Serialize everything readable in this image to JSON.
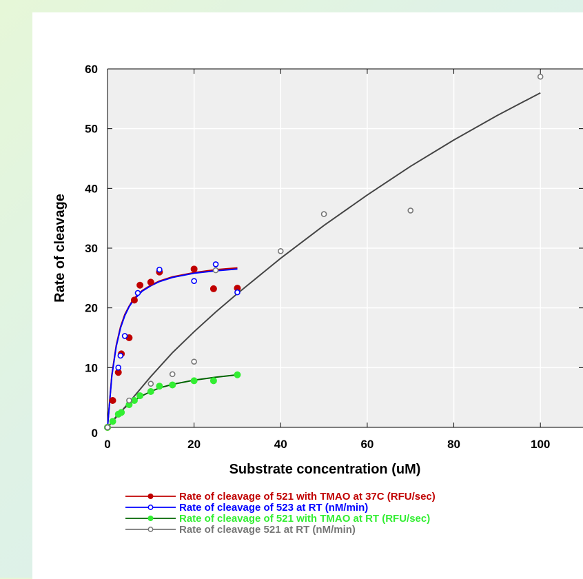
{
  "chart_data": {
    "type": "scatter",
    "xlabel": "Substrate concentration (uM)",
    "ylabel": "Rate of cleavage",
    "xlim": [
      0,
      110
    ],
    "ylim": [
      0,
      60
    ],
    "xticks": [
      0,
      20,
      40,
      60,
      80,
      100
    ],
    "yticks": [
      0,
      10,
      20,
      30,
      40,
      50,
      60
    ],
    "grid": true,
    "legend_position": "bottom",
    "series": [
      {
        "name": "Rate of cleavage of 521 with TMAO at 37C (RFU/sec)",
        "color": "#c00000",
        "marker": "filled-circle",
        "points": [
          [
            0,
            0
          ],
          [
            1.2,
            4.5
          ],
          [
            2.5,
            9.2
          ],
          [
            3.2,
            12.3
          ],
          [
            5,
            15
          ],
          [
            6.2,
            21.3
          ],
          [
            7.5,
            23.8
          ],
          [
            10,
            24.3
          ],
          [
            12,
            26
          ],
          [
            20,
            26.5
          ],
          [
            24.5,
            23.2
          ],
          [
            30,
            23.3
          ]
        ],
        "fit": [
          [
            0,
            0
          ],
          [
            1,
            8.8
          ],
          [
            2,
            13.7
          ],
          [
            3,
            16.8
          ],
          [
            4,
            18.9
          ],
          [
            5,
            20.3
          ],
          [
            6,
            21.5
          ],
          [
            8,
            22.9
          ],
          [
            10,
            23.8
          ],
          [
            12,
            24.5
          ],
          [
            15,
            25.2
          ],
          [
            20,
            25.9
          ],
          [
            25,
            26.4
          ],
          [
            30,
            26.7
          ]
        ]
      },
      {
        "name": "Rate of cleavage of 523 at RT (nM/min)",
        "color": "#0000ff",
        "marker": "open-circle",
        "points": [
          [
            0,
            0
          ],
          [
            2.5,
            10
          ],
          [
            3,
            12
          ],
          [
            4,
            15.3
          ],
          [
            7,
            22.5
          ],
          [
            12,
            26.4
          ],
          [
            20,
            24.5
          ],
          [
            25,
            27.3
          ],
          [
            30,
            22.6
          ]
        ],
        "fit": [
          [
            0,
            0
          ],
          [
            1,
            8.6
          ],
          [
            2,
            13.5
          ],
          [
            3,
            16.6
          ],
          [
            4,
            18.7
          ],
          [
            5,
            20.2
          ],
          [
            6,
            21.3
          ],
          [
            8,
            22.8
          ],
          [
            10,
            23.7
          ],
          [
            12,
            24.4
          ],
          [
            15,
            25.1
          ],
          [
            20,
            25.8
          ],
          [
            25,
            26.2
          ],
          [
            30,
            26.5
          ]
        ]
      },
      {
        "name": "Rate of cleavage of 521 with TMAO at RT (RFU/sec)",
        "color": "#33ee33",
        "line_color": "#006400",
        "marker": "filled-circle",
        "points": [
          [
            0,
            0
          ],
          [
            1.2,
            1
          ],
          [
            2.5,
            2.2
          ],
          [
            3.2,
            2.5
          ],
          [
            5,
            3.8
          ],
          [
            6.2,
            4.5
          ],
          [
            7.5,
            5.3
          ],
          [
            10,
            6
          ],
          [
            12,
            6.9
          ],
          [
            15,
            7.1
          ],
          [
            20,
            7.8
          ],
          [
            24.5,
            7.8
          ],
          [
            30,
            8.8
          ]
        ],
        "fit": [
          [
            0,
            0
          ],
          [
            2,
            1.8
          ],
          [
            4,
            3.3
          ],
          [
            6,
            4.4
          ],
          [
            8,
            5.3
          ],
          [
            10,
            6
          ],
          [
            12,
            6.6
          ],
          [
            15,
            7.2
          ],
          [
            20,
            7.9
          ],
          [
            25,
            8.4
          ],
          [
            30,
            8.8
          ]
        ]
      },
      {
        "name": "Rate of cleavage 521 at RT (nM/min)",
        "color": "#777777",
        "line_color": "#444444",
        "marker": "open-circle",
        "points": [
          [
            0,
            0
          ],
          [
            5,
            4.5
          ],
          [
            10,
            7.3
          ],
          [
            15,
            8.9
          ],
          [
            20,
            11
          ],
          [
            25,
            26.3
          ],
          [
            40,
            29.5
          ],
          [
            50,
            35.7
          ],
          [
            70,
            36.3
          ],
          [
            100,
            58.7
          ]
        ],
        "fit": [
          [
            0,
            0
          ],
          [
            5,
            4.2
          ],
          [
            10,
            8.5
          ],
          [
            15,
            12.5
          ],
          [
            20,
            16
          ],
          [
            25,
            19.3
          ],
          [
            30,
            22.4
          ],
          [
            40,
            28.3
          ],
          [
            50,
            33.8
          ],
          [
            60,
            38.9
          ],
          [
            70,
            43.7
          ],
          [
            80,
            48.1
          ],
          [
            90,
            52.2
          ],
          [
            100,
            56
          ]
        ]
      }
    ]
  }
}
